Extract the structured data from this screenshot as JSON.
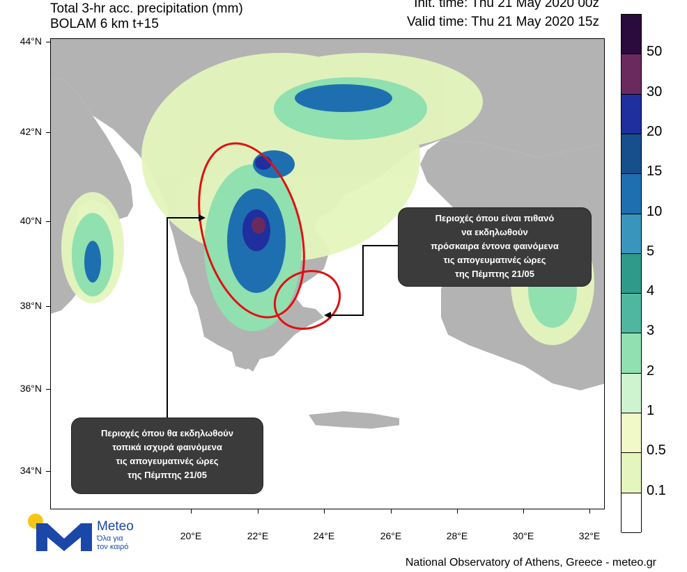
{
  "header": {
    "title_line1": "Total 3-hr acc. precipitation (mm)",
    "title_line2": "BOLAM 6 km t+15",
    "init_time": "Init. time: Thu 21 May 2020 00z",
    "valid_time": "Valid time: Thu 21 May 2020 15z"
  },
  "map": {
    "lat_labels": [
      "44°N",
      "42°N",
      "40°N",
      "38°N",
      "36°N",
      "34°N"
    ],
    "lon_labels": [
      "20°E",
      "22°E",
      "24°E",
      "26°E",
      "28°E",
      "30°E",
      "32°E"
    ],
    "colors": {
      "land": "#b3b3b3",
      "sea": "#ffffff",
      "border": "#3a3a3a",
      "highlight_ellipse": "#e01010"
    }
  },
  "callouts": {
    "west": {
      "line1": "Περιοχές όπου θα εκδηλωθούν",
      "line2": "τοπικά ισχυρά φαινόμενα",
      "line3": "τις απογευματινές ώρες",
      "line4": "της Πέμπτης 21/05"
    },
    "east": {
      "line1": "Περιοχές όπου είναι πιθανό",
      "line2": "να εκδηλωθούν",
      "line3": "πρόσκαιρα έντονα φαινόμενα",
      "line4": "τις απογευματινές ώρες",
      "line5": "της Πέμπτης 21/05"
    }
  },
  "legend": {
    "levels": [
      "50",
      "30",
      "20",
      "15",
      "10",
      "5",
      "4",
      "3",
      "2",
      "1",
      "0.5",
      "0.1"
    ],
    "colors": [
      "#2b0a3d",
      "#6a2a5e",
      "#1f2f9e",
      "#174f8c",
      "#1e6fb0",
      "#3a95bd",
      "#2e9a8a",
      "#4fb7a0",
      "#90e0b0",
      "#cdf3cf",
      "#f1f9c8",
      "#e4f5bd",
      "#ffffff"
    ]
  },
  "logo": {
    "brand": "Meteo",
    "tagline_line1": "Όλα για",
    "tagline_line2": "τον καιρό"
  },
  "footer": {
    "credit": "National Observatory of Athens, Greece - meteo.gr"
  }
}
